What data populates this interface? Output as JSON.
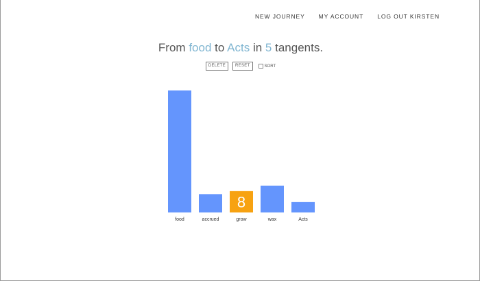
{
  "nav": {
    "new_journey": "NEW JOURNEY",
    "my_account": "MY ACCOUNT",
    "log_out": "LOG OUT KIRSTEN"
  },
  "headline": {
    "from_label": "From",
    "start_word": "food",
    "to_label": "to",
    "end_word": "Acts",
    "in_label": "in",
    "count": "5",
    "suffix": "tangents."
  },
  "controls": {
    "delete_label": "DELETE",
    "reset_label": "RESET",
    "sort_label": "SORT",
    "sort_checked": false
  },
  "colors": {
    "bar": "#6495fd",
    "highlight": "#f7a211",
    "accent_text": "#7fb5d1"
  },
  "chart_data": {
    "type": "bar",
    "categories": [
      "food",
      "accrued",
      "grow",
      "wax",
      "Acts"
    ],
    "values": [
      100,
      15,
      17.5,
      22,
      8.5
    ],
    "ylim": [
      0,
      100
    ],
    "highlight_index": 2,
    "highlight_label": "8",
    "grid": false,
    "legend": "none"
  }
}
